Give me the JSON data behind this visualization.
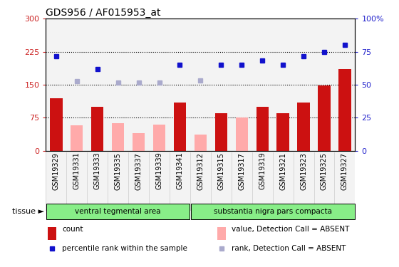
{
  "title": "GDS956 / AF015953_at",
  "categories": [
    "GSM19329",
    "GSM19331",
    "GSM19333",
    "GSM19335",
    "GSM19337",
    "GSM19339",
    "GSM19341",
    "GSM19312",
    "GSM19315",
    "GSM19317",
    "GSM19319",
    "GSM19321",
    "GSM19323",
    "GSM19325",
    "GSM19327"
  ],
  "count_values": [
    120,
    0,
    100,
    0,
    0,
    0,
    110,
    0,
    85,
    0,
    100,
    85,
    110,
    148,
    185
  ],
  "count_absent": [
    0,
    58,
    0,
    63,
    40,
    60,
    0,
    37,
    0,
    75,
    0,
    0,
    0,
    0,
    0
  ],
  "rank_values": [
    215,
    0,
    185,
    0,
    0,
    0,
    195,
    0,
    195,
    195,
    205,
    195,
    215,
    225,
    240
  ],
  "rank_absent": [
    0,
    158,
    0,
    155,
    155,
    155,
    0,
    160,
    0,
    0,
    0,
    0,
    0,
    0,
    0
  ],
  "tissue_groups": [
    {
      "label": "ventral tegmental area",
      "start": 0,
      "end": 6
    },
    {
      "label": "substantia nigra pars compacta",
      "start": 7,
      "end": 14
    }
  ],
  "ylim_left": [
    0,
    300
  ],
  "ylim_right": [
    0,
    100
  ],
  "yticks_left": [
    0,
    75,
    150,
    225,
    300
  ],
  "yticks_right": [
    0,
    25,
    50,
    75,
    100
  ],
  "bar_color_red": "#cc1111",
  "bar_color_pink": "#ffaaaa",
  "dot_color_blue": "#1111cc",
  "dot_color_lightblue": "#aaaacc",
  "tissue_color": "#88ee88",
  "bg_color": "#dddddd",
  "legend_items": [
    {
      "label": "count",
      "color": "#cc1111",
      "type": "bar"
    },
    {
      "label": "percentile rank within the sample",
      "color": "#1111cc",
      "type": "dot"
    },
    {
      "label": "value, Detection Call = ABSENT",
      "color": "#ffaaaa",
      "type": "bar"
    },
    {
      "label": "rank, Detection Call = ABSENT",
      "color": "#aaaacc",
      "type": "dot"
    }
  ]
}
